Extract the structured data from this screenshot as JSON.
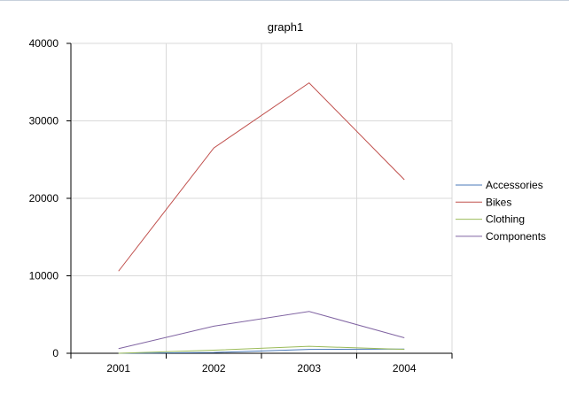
{
  "chart_data": {
    "type": "line",
    "title": "graph1",
    "xlabel": "",
    "ylabel": "",
    "categories": [
      "2001",
      "2002",
      "2003",
      "2004"
    ],
    "ylim": [
      0,
      40000
    ],
    "yticks": [
      "0",
      "10000",
      "20000",
      "30000",
      "40000"
    ],
    "grid": true,
    "legend_position": "right",
    "series": [
      {
        "name": "Accessories",
        "color": "#4a7ab8",
        "values": [
          0,
          100,
          500,
          550
        ]
      },
      {
        "name": "Bikes",
        "color": "#c0504d",
        "values": [
          10600,
          26500,
          34900,
          22400
        ]
      },
      {
        "name": "Clothing",
        "color": "#9bbb59",
        "values": [
          0,
          400,
          900,
          500
        ]
      },
      {
        "name": "Components",
        "color": "#8064a2",
        "values": [
          600,
          3500,
          5400,
          2000
        ]
      }
    ]
  }
}
